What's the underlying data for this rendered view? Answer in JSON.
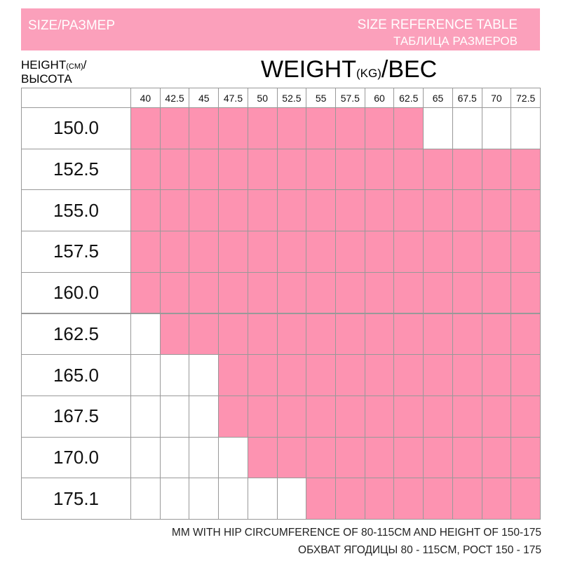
{
  "header": {
    "left": "SIZE/РАЗМЕР",
    "right_line1": "SIZE REFERENCE TABLE",
    "right_line2": "ТАБЛИЦА РАЗМЕРОВ"
  },
  "height_label": {
    "main": "HEIGHT",
    "unit": "(CM)",
    "slash": "/",
    "ru": "ВЫСОТА"
  },
  "weight_label": {
    "main": "WEIGHT",
    "unit": "(KG)",
    "rest": "/BEC"
  },
  "table": {
    "fit_color": "#fd93b1",
    "weights": [
      "40",
      "42.5",
      "45",
      "47.5",
      "50",
      "52.5",
      "55",
      "57.5",
      "60",
      "62.5",
      "65",
      "67.5",
      "70",
      "72.5"
    ],
    "rows": [
      {
        "height": "150.0",
        "fit": [
          true,
          true,
          true,
          true,
          true,
          true,
          true,
          true,
          true,
          true,
          false,
          false,
          false,
          false
        ]
      },
      {
        "height": "152.5",
        "fit": [
          true,
          true,
          true,
          true,
          true,
          true,
          true,
          true,
          true,
          true,
          true,
          true,
          true,
          true
        ]
      },
      {
        "height": "155.0",
        "fit": [
          true,
          true,
          true,
          true,
          true,
          true,
          true,
          true,
          true,
          true,
          true,
          true,
          true,
          true
        ]
      },
      {
        "height": "157.5",
        "fit": [
          true,
          true,
          true,
          true,
          true,
          true,
          true,
          true,
          true,
          true,
          true,
          true,
          true,
          true
        ]
      },
      {
        "height": "160.0",
        "fit": [
          true,
          true,
          true,
          true,
          true,
          true,
          true,
          true,
          true,
          true,
          true,
          true,
          true,
          true
        ]
      },
      {
        "height": "162.5",
        "fit": [
          false,
          true,
          true,
          true,
          true,
          true,
          true,
          true,
          true,
          true,
          true,
          true,
          true,
          true
        ]
      },
      {
        "height": "165.0",
        "fit": [
          false,
          false,
          false,
          true,
          true,
          true,
          true,
          true,
          true,
          true,
          true,
          true,
          true,
          true
        ]
      },
      {
        "height": "167.5",
        "fit": [
          false,
          false,
          false,
          true,
          true,
          true,
          true,
          true,
          true,
          true,
          true,
          true,
          true,
          true
        ]
      },
      {
        "height": "170.0",
        "fit": [
          false,
          false,
          false,
          false,
          true,
          true,
          true,
          true,
          true,
          true,
          true,
          true,
          true,
          true
        ]
      },
      {
        "height": "175.1",
        "fit": [
          false,
          false,
          false,
          false,
          false,
          false,
          true,
          true,
          true,
          true,
          true,
          true,
          true,
          true
        ]
      }
    ]
  },
  "footer": {
    "line1": "MM WITH HIP CIRCUMFERENCE OF 80-115CM AND HEIGHT OF 150-175",
    "line2": "ОБХВАТ ЯГОДИЦЫ 80 - 115CM, РОСТ 150 - 175"
  }
}
